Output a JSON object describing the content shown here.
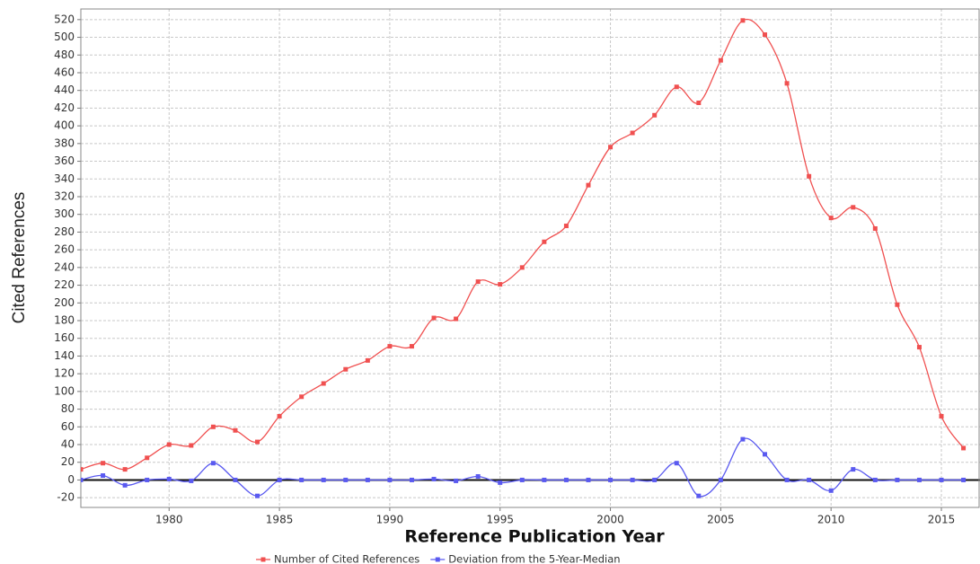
{
  "chart_data": {
    "type": "line",
    "x_label": "Reference Publication Year",
    "y_label": "Cited References",
    "x": [
      1976,
      1977,
      1978,
      1979,
      1980,
      1981,
      1982,
      1983,
      1984,
      1985,
      1986,
      1987,
      1988,
      1989,
      1990,
      1991,
      1992,
      1993,
      1994,
      1995,
      1996,
      1997,
      1998,
      1999,
      2000,
      2001,
      2002,
      2003,
      2004,
      2005,
      2006,
      2007,
      2008,
      2009,
      2010,
      2011,
      2012,
      2013,
      2014,
      2015,
      2016
    ],
    "series": [
      {
        "name": "Number of Cited References",
        "color": "#f05050",
        "values": [
          12,
          19,
          12,
          25,
          40,
          39,
          60,
          56,
          43,
          72,
          94,
          109,
          125,
          135,
          151,
          151,
          183,
          182,
          224,
          221,
          240,
          269,
          287,
          333,
          376,
          392,
          412,
          444,
          426,
          474,
          519,
          503,
          448,
          343,
          296,
          308,
          284,
          198,
          150,
          72,
          36
        ]
      },
      {
        "name": "Deviation from the 5-Year-Median",
        "color": "#5a5af0",
        "values": [
          0,
          5,
          -6,
          0,
          1,
          -1,
          19,
          0,
          -18,
          0,
          0,
          0,
          0,
          0,
          0,
          0,
          1,
          -1,
          4,
          -3,
          0,
          0,
          0,
          0,
          0,
          0,
          0,
          19,
          -18,
          0,
          46,
          29,
          0,
          0,
          -12,
          12,
          0,
          0,
          0,
          0,
          0
        ]
      }
    ],
    "xlim": [
      1976,
      2016.75
    ],
    "ylim": [
      -31,
      532
    ],
    "xticks": [
      1980,
      1985,
      1990,
      1995,
      2000,
      2005,
      2010,
      2015
    ],
    "yticks": [
      -20,
      0,
      20,
      40,
      60,
      80,
      100,
      120,
      140,
      160,
      180,
      200,
      220,
      240,
      260,
      280,
      300,
      320,
      340,
      360,
      380,
      400,
      420,
      440,
      460,
      480,
      500,
      520
    ],
    "grid": true,
    "legend": "bottom"
  }
}
